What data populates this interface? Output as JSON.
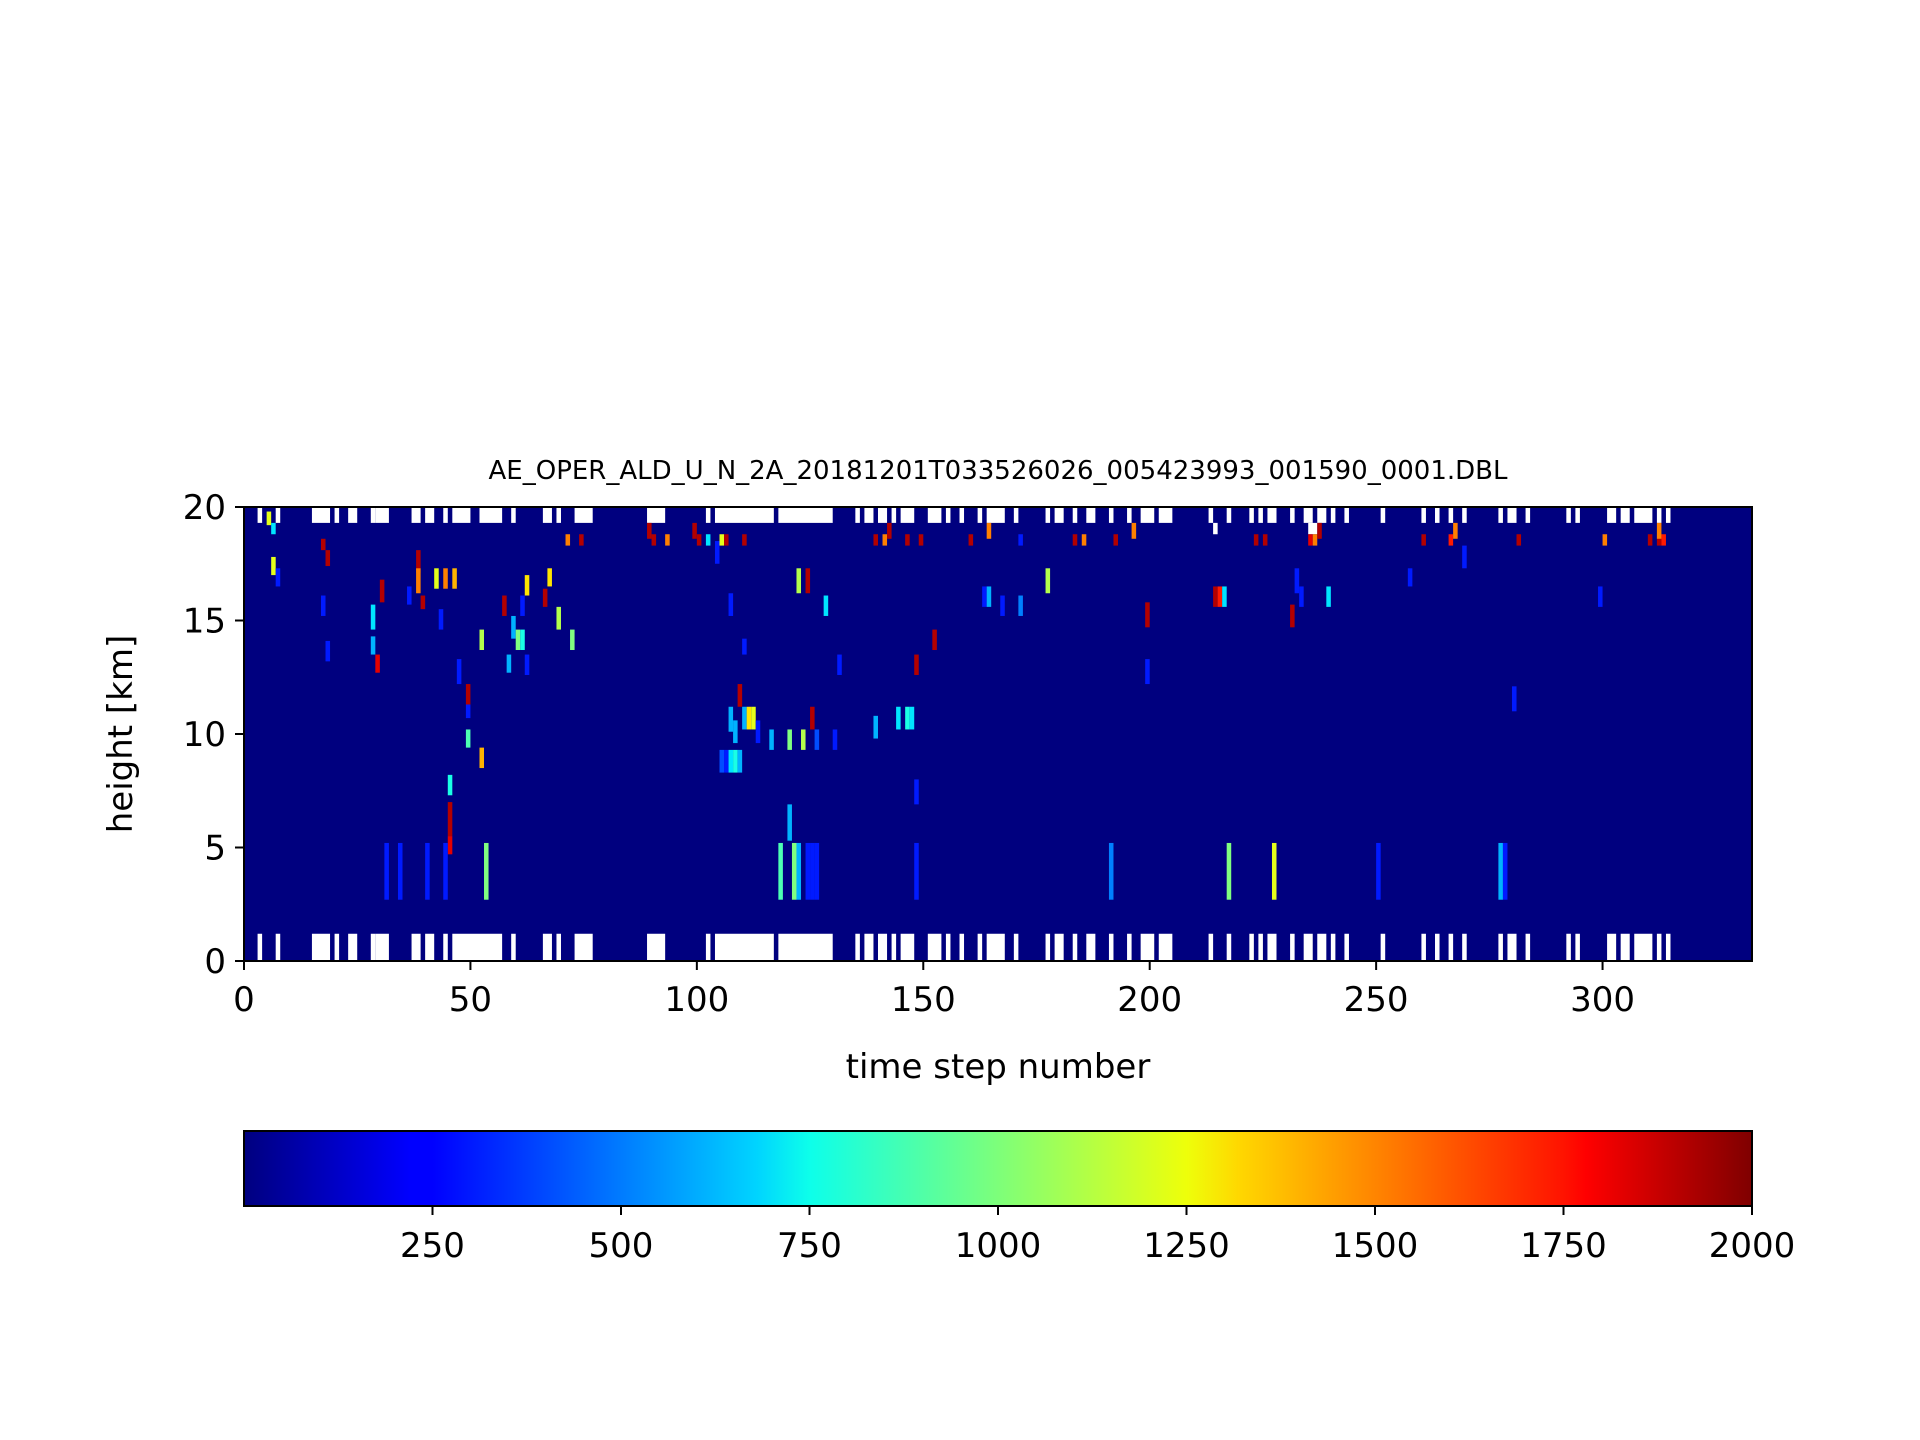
{
  "chart_data": {
    "type": "heatmap",
    "title": "AE_OPER_ALD_U_N_2A_20181201T033526026_005423993_001590_0001.DBL",
    "xlabel": "time step number",
    "ylabel": "height [km]",
    "xlim": [
      0,
      333
    ],
    "ylim": [
      0,
      20
    ],
    "x_ticks": [
      0,
      50,
      100,
      150,
      200,
      250,
      300
    ],
    "y_ticks": [
      0,
      5,
      10,
      15,
      20
    ],
    "colorbar": {
      "colormap": "jet",
      "range": [
        0,
        2000
      ],
      "ticks": [
        250,
        500,
        750,
        1000,
        1250,
        1500,
        1750,
        2000
      ]
    },
    "background_value": 0,
    "missing_color": "#ffffff",
    "missing_bands": [
      {
        "y0": 0,
        "y1": 1.2,
        "x_segments": [
          [
            3,
            4
          ],
          [
            7,
            8
          ],
          [
            15,
            19
          ],
          [
            20,
            21
          ],
          [
            23,
            25
          ],
          [
            28,
            29
          ],
          [
            29,
            32
          ],
          [
            37,
            39
          ],
          [
            40,
            42
          ],
          [
            44,
            45
          ],
          [
            46,
            57
          ],
          [
            59,
            60
          ],
          [
            66,
            68
          ],
          [
            69,
            70
          ],
          [
            73,
            77
          ],
          [
            89,
            93
          ],
          [
            102,
            103
          ],
          [
            104,
            117
          ],
          [
            118,
            130
          ],
          [
            135,
            136
          ],
          [
            137,
            139
          ],
          [
            140,
            142
          ],
          [
            143,
            144
          ],
          [
            145,
            148
          ],
          [
            151,
            154
          ],
          [
            155,
            156
          ],
          [
            158,
            159
          ],
          [
            162,
            163
          ],
          [
            164,
            168
          ],
          [
            170,
            171
          ],
          [
            177,
            178
          ],
          [
            179,
            181
          ],
          [
            183,
            184
          ],
          [
            186,
            188
          ],
          [
            191,
            192
          ],
          [
            195,
            196
          ],
          [
            198,
            201
          ],
          [
            202,
            205
          ],
          [
            213,
            214
          ],
          [
            217,
            218
          ],
          [
            222,
            223
          ],
          [
            224,
            225
          ],
          [
            226,
            228
          ],
          [
            231,
            232
          ],
          [
            234,
            236
          ],
          [
            237,
            239
          ],
          [
            240,
            241
          ],
          [
            243,
            244
          ],
          [
            251,
            252
          ],
          [
            260,
            261
          ],
          [
            263,
            264
          ],
          [
            266,
            267
          ],
          [
            269,
            270
          ],
          [
            277,
            278
          ],
          [
            279,
            281
          ],
          [
            283,
            284
          ],
          [
            292,
            293
          ],
          [
            294,
            295
          ],
          [
            301,
            303
          ],
          [
            304,
            306
          ],
          [
            307,
            311
          ],
          [
            312,
            313
          ],
          [
            314,
            315
          ]
        ]
      },
      {
        "y0": 19.3,
        "y1": 20,
        "x_segments": [
          [
            3,
            4
          ],
          [
            7,
            8
          ],
          [
            15,
            19
          ],
          [
            20,
            21
          ],
          [
            23,
            25
          ],
          [
            28,
            29
          ],
          [
            29,
            32
          ],
          [
            37,
            39
          ],
          [
            40,
            42
          ],
          [
            44,
            45
          ],
          [
            46,
            50
          ],
          [
            52,
            57
          ],
          [
            59,
            60
          ],
          [
            66,
            68
          ],
          [
            69,
            70
          ],
          [
            73,
            77
          ],
          [
            89,
            93
          ],
          [
            102,
            103
          ],
          [
            104,
            117
          ],
          [
            118,
            130
          ],
          [
            135,
            136
          ],
          [
            137,
            139
          ],
          [
            140,
            142
          ],
          [
            143,
            144
          ],
          [
            145,
            148
          ],
          [
            151,
            154
          ],
          [
            155,
            156
          ],
          [
            158,
            159
          ],
          [
            162,
            163
          ],
          [
            164,
            168
          ],
          [
            170,
            171
          ],
          [
            177,
            178
          ],
          [
            179,
            181
          ],
          [
            183,
            184
          ],
          [
            186,
            188
          ],
          [
            191,
            192
          ],
          [
            195,
            196
          ],
          [
            198,
            201
          ],
          [
            202,
            205
          ],
          [
            213,
            214
          ],
          [
            217,
            218
          ],
          [
            222,
            223
          ],
          [
            224,
            225
          ],
          [
            226,
            228
          ],
          [
            231,
            232
          ],
          [
            234,
            236
          ],
          [
            237,
            239
          ],
          [
            240,
            241
          ],
          [
            243,
            244
          ],
          [
            251,
            252
          ],
          [
            260,
            261
          ],
          [
            263,
            264
          ],
          [
            266,
            267
          ],
          [
            269,
            270
          ],
          [
            277,
            278
          ],
          [
            279,
            281
          ],
          [
            283,
            284
          ],
          [
            292,
            293
          ],
          [
            294,
            295
          ],
          [
            301,
            303
          ],
          [
            304,
            306
          ],
          [
            307,
            311
          ],
          [
            312,
            313
          ],
          [
            314,
            315
          ]
        ]
      },
      {
        "y0": 18.8,
        "y1": 19.3,
        "x_segments": [
          [
            214,
            215
          ],
          [
            235,
            237
          ]
        ]
      }
    ],
    "cells": [
      [
        5,
        19.2,
        19.8,
        1200
      ],
      [
        6,
        18.8,
        19.3,
        700
      ],
      [
        6,
        17,
        17.8,
        1200
      ],
      [
        7,
        16.5,
        17.3,
        300
      ],
      [
        17,
        18.1,
        18.6,
        1900
      ],
      [
        18,
        17.4,
        18.1,
        1900
      ],
      [
        17,
        15.2,
        16.1,
        300
      ],
      [
        18,
        13.2,
        14.1,
        300
      ],
      [
        29,
        12.7,
        13.5,
        1800
      ],
      [
        30,
        15.8,
        16.8,
        1900
      ],
      [
        28,
        14.6,
        15.7,
        700
      ],
      [
        28,
        13.5,
        14.3,
        600
      ],
      [
        36,
        15.7,
        16.5,
        300
      ],
      [
        38,
        17.1,
        18.1,
        1900
      ],
      [
        39,
        15.5,
        16.1,
        1900
      ],
      [
        43,
        14.6,
        15.5,
        300
      ],
      [
        38,
        16.2,
        17.3,
        1500
      ],
      [
        42,
        16.4,
        17.3,
        1200
      ],
      [
        44,
        16.4,
        17.3,
        1500
      ],
      [
        46,
        16.4,
        17.3,
        1400
      ],
      [
        49,
        11.3,
        12.2,
        1900
      ],
      [
        47,
        12.2,
        13.3,
        300
      ],
      [
        49,
        10.7,
        11.3,
        300
      ],
      [
        49,
        9.4,
        10.2,
        900
      ],
      [
        52,
        8.5,
        9.4,
        1400
      ],
      [
        45,
        5.5,
        7.0,
        1900
      ],
      [
        45,
        4.7,
        5.5,
        1800
      ],
      [
        45,
        7.3,
        8.2,
        800
      ],
      [
        52,
        13.7,
        14.6,
        1100
      ],
      [
        57,
        15.2,
        16.1,
        1900
      ],
      [
        59,
        14.2,
        15.2,
        600
      ],
      [
        58,
        12.7,
        13.5,
        600
      ],
      [
        60,
        13.7,
        14.6,
        1000
      ],
      [
        61,
        13.7,
        14.6,
        800
      ],
      [
        62,
        12.6,
        13.5,
        300
      ],
      [
        61,
        15.2,
        16.1,
        300
      ],
      [
        62,
        16.1,
        17.0,
        1300
      ],
      [
        66,
        15.6,
        16.4,
        1900
      ],
      [
        67,
        16.5,
        17.3,
        1300
      ],
      [
        69,
        14.6,
        15.6,
        1100
      ],
      [
        72,
        13.7,
        14.6,
        1000
      ],
      [
        74,
        18.3,
        18.8,
        1900
      ],
      [
        71,
        18.3,
        18.8,
        1500
      ],
      [
        31,
        2.7,
        5.2,
        300
      ],
      [
        34,
        2.7,
        5.2,
        300
      ],
      [
        40,
        2.7,
        5.2,
        300
      ],
      [
        44,
        2.7,
        5.2,
        300
      ],
      [
        53,
        2.7,
        5.2,
        1000
      ],
      [
        89,
        18.6,
        19.3,
        1900
      ],
      [
        90,
        18.3,
        18.8,
        1900
      ],
      [
        93,
        18.3,
        18.8,
        1500
      ],
      [
        99,
        18.6,
        19.3,
        1900
      ],
      [
        100,
        18.3,
        18.8,
        1900
      ],
      [
        102,
        18.3,
        18.8,
        700
      ],
      [
        105,
        18.3,
        18.8,
        1200
      ],
      [
        104,
        17.5,
        18.5,
        300
      ],
      [
        106,
        18.3,
        18.8,
        1900
      ],
      [
        110,
        18.3,
        18.8,
        1900
      ],
      [
        107,
        15.2,
        16.2,
        300
      ],
      [
        110,
        13.5,
        14.2,
        300
      ],
      [
        109,
        11.2,
        12.2,
        1900
      ],
      [
        107,
        10.1,
        11.2,
        600
      ],
      [
        108,
        9.6,
        10.6,
        600
      ],
      [
        110,
        10.2,
        11.2,
        600
      ],
      [
        111,
        10.2,
        11.2,
        1300
      ],
      [
        112,
        10.2,
        11.2,
        1200
      ],
      [
        113,
        9.6,
        10.6,
        300
      ],
      [
        105,
        8.3,
        9.3,
        400
      ],
      [
        106,
        8.3,
        9.3,
        300
      ],
      [
        107,
        8.3,
        9.3,
        700
      ],
      [
        108,
        8.3,
        9.3,
        800
      ],
      [
        109,
        8.3,
        9.3,
        600
      ],
      [
        116,
        9.3,
        10.2,
        600
      ],
      [
        120,
        9.3,
        10.2,
        1000
      ],
      [
        123,
        9.3,
        10.2,
        1100
      ],
      [
        122,
        16.2,
        17.3,
        1100
      ],
      [
        124,
        16.2,
        17.3,
        1900
      ],
      [
        128,
        15.2,
        16.1,
        700
      ],
      [
        125,
        10.2,
        11.2,
        1900
      ],
      [
        126,
        9.3,
        10.2,
        400
      ],
      [
        130,
        9.3,
        10.2,
        300
      ],
      [
        120,
        5.3,
        6.9,
        600
      ],
      [
        118,
        2.7,
        5.2,
        900
      ],
      [
        121,
        2.7,
        5.2,
        1000
      ],
      [
        122,
        2.7,
        5.2,
        600
      ],
      [
        124,
        2.7,
        5.2,
        300
      ],
      [
        125,
        2.7,
        5.2,
        300
      ],
      [
        126,
        2.7,
        5.2,
        300
      ],
      [
        131,
        12.6,
        13.5,
        300
      ],
      [
        139,
        9.8,
        10.8,
        600
      ],
      [
        144,
        10.2,
        11.2,
        700
      ],
      [
        146,
        10.2,
        11.2,
        800
      ],
      [
        147,
        10.2,
        11.2,
        700
      ],
      [
        139,
        18.3,
        18.8,
        1900
      ],
      [
        141,
        18.3,
        18.8,
        1500
      ],
      [
        146,
        18.3,
        18.8,
        1900
      ],
      [
        149,
        18.3,
        18.8,
        1900
      ],
      [
        148,
        12.6,
        13.5,
        1900
      ],
      [
        152,
        13.7,
        14.6,
        1900
      ],
      [
        148,
        6.9,
        8.0,
        300
      ],
      [
        148,
        2.7,
        5.2,
        300
      ],
      [
        142,
        18.6,
        19.3,
        1900
      ],
      [
        163,
        15.6,
        16.5,
        300
      ],
      [
        164,
        15.6,
        16.5,
        600
      ],
      [
        167,
        15.2,
        16.1,
        300
      ],
      [
        171,
        15.2,
        16.1,
        500
      ],
      [
        177,
        16.2,
        17.3,
        1100
      ],
      [
        160,
        18.3,
        18.8,
        1900
      ],
      [
        164,
        18.6,
        19.3,
        1500
      ],
      [
        171,
        18.3,
        18.8,
        300
      ],
      [
        183,
        18.3,
        18.8,
        1900
      ],
      [
        185,
        18.3,
        18.8,
        1500
      ],
      [
        191,
        2.7,
        5.2,
        500
      ],
      [
        199,
        14.7,
        15.8,
        1900
      ],
      [
        199,
        12.2,
        13.3,
        300
      ],
      [
        192,
        18.3,
        18.8,
        1900
      ],
      [
        196,
        18.6,
        19.3,
        1500
      ],
      [
        214,
        15.6,
        16.5,
        1900
      ],
      [
        215,
        15.6,
        16.5,
        1700
      ],
      [
        216,
        15.6,
        16.5,
        700
      ],
      [
        217,
        2.7,
        5.2,
        1000
      ],
      [
        223,
        18.3,
        18.8,
        1900
      ],
      [
        225,
        18.3,
        18.8,
        1900
      ],
      [
        227,
        2.7,
        5.2,
        1200
      ],
      [
        231,
        14.7,
        15.7,
        1900
      ],
      [
        232,
        16.2,
        17.3,
        300
      ],
      [
        233,
        15.6,
        16.5,
        300
      ],
      [
        235,
        18.3,
        18.8,
        1800
      ],
      [
        236,
        18.3,
        18.8,
        1500
      ],
      [
        237,
        18.6,
        19.3,
        1900
      ],
      [
        239,
        15.6,
        16.5,
        700
      ],
      [
        250,
        2.7,
        5.2,
        300
      ],
      [
        257,
        16.5,
        17.3,
        300
      ],
      [
        260,
        18.3,
        18.8,
        1900
      ],
      [
        266,
        18.3,
        18.8,
        1700
      ],
      [
        267,
        18.6,
        19.3,
        1500
      ],
      [
        269,
        17.3,
        18.3,
        300
      ],
      [
        277,
        2.7,
        5.2,
        600
      ],
      [
        278,
        2.7,
        5.2,
        300
      ],
      [
        280,
        11.0,
        12.1,
        300
      ],
      [
        281,
        18.3,
        18.8,
        1900
      ],
      [
        299,
        15.6,
        16.5,
        300
      ],
      [
        300,
        18.3,
        18.8,
        1500
      ],
      [
        310,
        18.3,
        18.8,
        1900
      ],
      [
        312,
        18.3,
        18.8,
        1900
      ],
      [
        312,
        18.6,
        19.3,
        1500
      ],
      [
        313,
        18.3,
        18.8,
        1700
      ]
    ]
  }
}
